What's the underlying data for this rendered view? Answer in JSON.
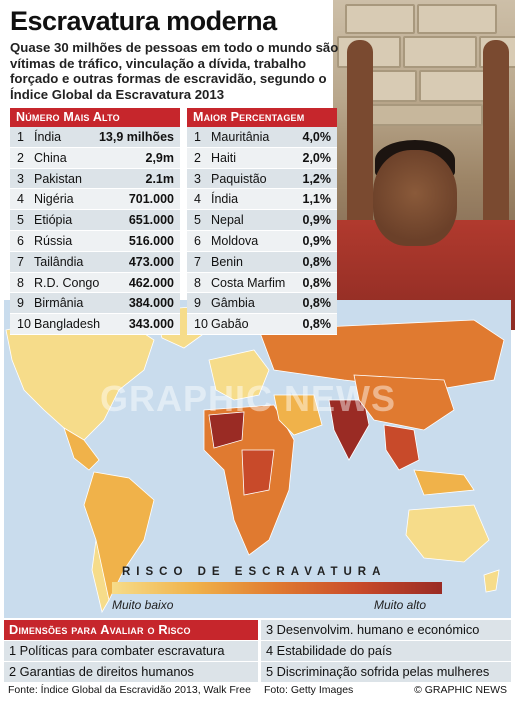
{
  "header": {
    "title": "Escravatura moderna",
    "subtitle": "Quase 30 milhões de pessoas em todo o mundo são vítimas de tráfico, vinculação a dívida, trabalho forçado e outras formas de escravidão, segundo o Índice Global da Escravatura 2013"
  },
  "table_highest_number": {
    "heading": "Número Mais Alto",
    "rows": [
      {
        "rank": "1",
        "country": "Índia",
        "value": "13,9 milhões"
      },
      {
        "rank": "2",
        "country": "China",
        "value": "2,9m"
      },
      {
        "rank": "3",
        "country": "Pakistan",
        "value": "2.1m"
      },
      {
        "rank": "4",
        "country": "Nigéria",
        "value": "701.000"
      },
      {
        "rank": "5",
        "country": "Etiópia",
        "value": "651.000"
      },
      {
        "rank": "6",
        "country": "Rússia",
        "value": "516.000"
      },
      {
        "rank": "7",
        "country": "Tailândia",
        "value": "473.000"
      },
      {
        "rank": "8",
        "country": "R.D. Congo",
        "value": "462.000"
      },
      {
        "rank": "9",
        "country": "Birmânia",
        "value": "384.000"
      },
      {
        "rank": "10",
        "country": "Bangladesh",
        "value": "343.000"
      }
    ]
  },
  "table_highest_percentage": {
    "heading": "Maior Percentagem",
    "rows": [
      {
        "rank": "1",
        "country": "Mauritânia",
        "value": "4,0%"
      },
      {
        "rank": "2",
        "country": "Haiti",
        "value": "2,0%"
      },
      {
        "rank": "3",
        "country": "Paquistão",
        "value": "1,2%"
      },
      {
        "rank": "4",
        "country": "Índia",
        "value": "1,1%"
      },
      {
        "rank": "5",
        "country": "Nepal",
        "value": "0,9%"
      },
      {
        "rank": "6",
        "country": "Moldova",
        "value": "0,9%"
      },
      {
        "rank": "7",
        "country": "Benin",
        "value": "0,8%"
      },
      {
        "rank": "8",
        "country": "Costa Marfim",
        "value": "0,8%"
      },
      {
        "rank": "9",
        "country": "Gâmbia",
        "value": "0,8%"
      },
      {
        "rank": "10",
        "country": "Gabão",
        "value": "0,8%"
      }
    ]
  },
  "watermark": "GRAPHIC NEWS",
  "legend": {
    "title": "RISCO DE ESCRAVATURA",
    "low": "Muito baixo",
    "high": "Muito alto",
    "colors": [
      "#f6dc8a",
      "#f0b24a",
      "#e07a30",
      "#c84a2a",
      "#9a2b24"
    ]
  },
  "dimensions": {
    "heading": "Dimensões para Avaliar o Risco",
    "items": [
      "1 Políticas para combater escravatura",
      "2 Garantias de direitos humanos",
      "3 Desenvolvim. humano e económico",
      "4 Estabilidade do país",
      "5 Discriminação sofrida pelas mulheres"
    ]
  },
  "footer": {
    "source": "Fonte: Índice Global da Escravidão 2013, Walk Free",
    "photo_credit": "Foto: Getty Images",
    "brand": "© GRAPHIC NEWS"
  },
  "colors": {
    "accent_red": "#c6262c",
    "ocean": "#c9dced"
  }
}
